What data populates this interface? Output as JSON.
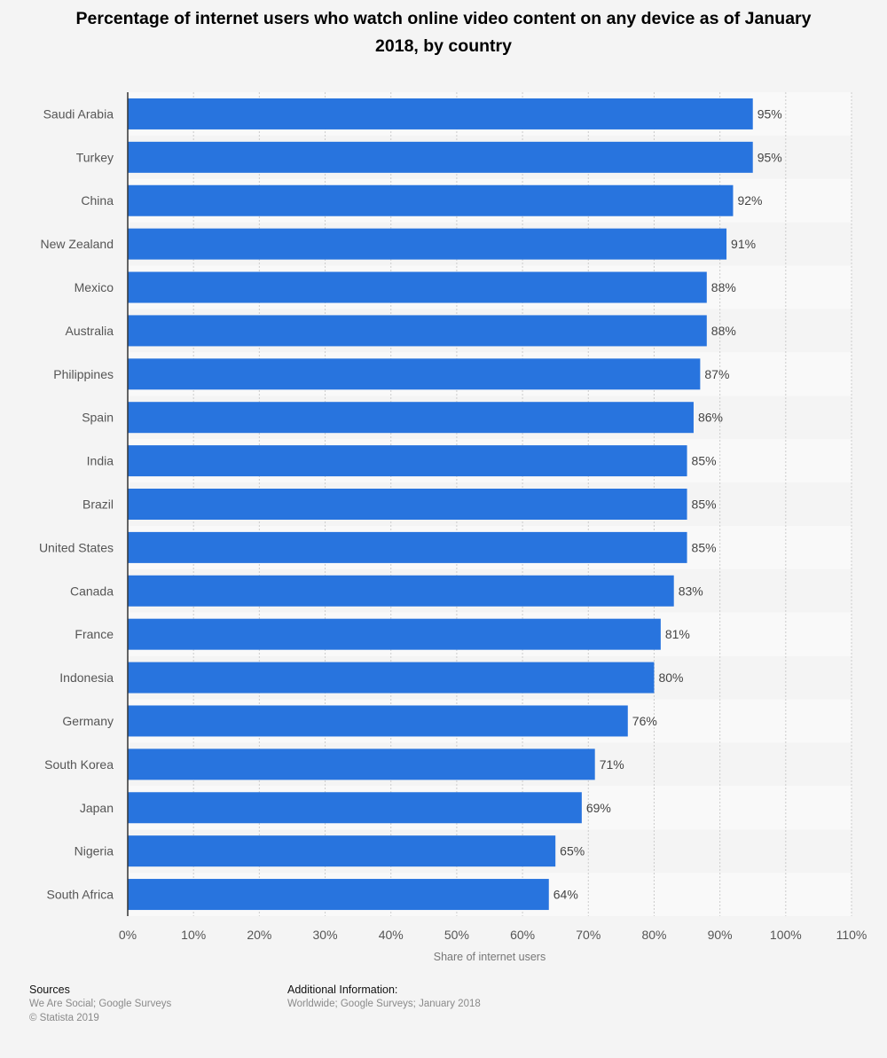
{
  "title": "Percentage of internet users who watch online video content on any device as of January 2018, by country",
  "colors": {
    "bar": "#2874de",
    "band": "#f9f9f9",
    "grid": "#cccccc",
    "axis": "#333333"
  },
  "chart_data": {
    "type": "bar",
    "orientation": "horizontal",
    "title": "Percentage of internet users who watch online video content on any device as of January 2018, by country",
    "xlabel": "Share of internet users",
    "ylabel": "",
    "xlim": [
      0,
      110
    ],
    "ticks": [
      0,
      10,
      20,
      30,
      40,
      50,
      60,
      70,
      80,
      90,
      100,
      110
    ],
    "tick_labels": [
      "0%",
      "10%",
      "20%",
      "30%",
      "40%",
      "50%",
      "60%",
      "70%",
      "80%",
      "90%",
      "100%",
      "110%"
    ],
    "grid": true,
    "categories": [
      "Saudi Arabia",
      "Turkey",
      "China",
      "New Zealand",
      "Mexico",
      "Australia",
      "Philippines",
      "Spain",
      "India",
      "Brazil",
      "United States",
      "Canada",
      "France",
      "Indonesia",
      "Germany",
      "South Korea",
      "Japan",
      "Nigeria",
      "South Africa"
    ],
    "values": [
      95,
      95,
      92,
      91,
      88,
      88,
      87,
      86,
      85,
      85,
      85,
      83,
      81,
      80,
      76,
      71,
      69,
      65,
      64
    ],
    "value_labels": [
      "95%",
      "95%",
      "92%",
      "91%",
      "88%",
      "88%",
      "87%",
      "86%",
      "85%",
      "85%",
      "85%",
      "83%",
      "81%",
      "80%",
      "76%",
      "71%",
      "69%",
      "65%",
      "64%"
    ]
  },
  "footer": {
    "sources_heading": "Sources",
    "sources_line1": "We Are Social; Google Surveys",
    "sources_line2": "© Statista 2019",
    "info_heading": "Additional Information:",
    "info_line1": "Worldwide; Google Surveys; January 2018"
  }
}
